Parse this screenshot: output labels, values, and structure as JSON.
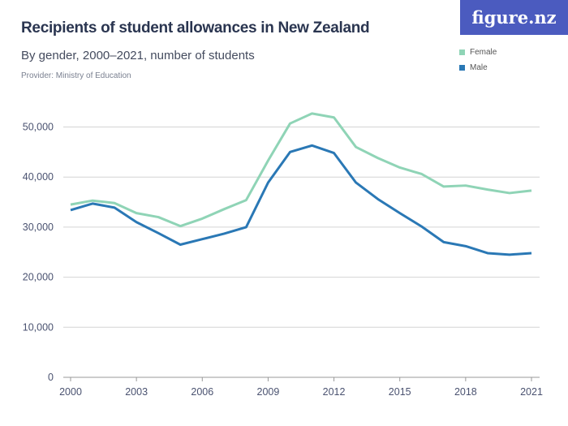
{
  "logo": "figure.nz",
  "chart_data": {
    "type": "line",
    "title": "Recipients of student allowances in New Zealand",
    "subtitle": "By gender, 2000–2021, number of students",
    "provider": "Provider: Ministry of Education",
    "x": [
      2000,
      2001,
      2002,
      2003,
      2004,
      2005,
      2006,
      2007,
      2008,
      2009,
      2010,
      2011,
      2012,
      2013,
      2014,
      2015,
      2016,
      2017,
      2018,
      2019,
      2020,
      2021
    ],
    "x_ticks": [
      "2000",
      "2003",
      "2006",
      "2009",
      "2012",
      "2015",
      "2018",
      "2021"
    ],
    "y_ticks": [
      "0",
      "10,000",
      "20,000",
      "30,000",
      "40,000",
      "50,000"
    ],
    "ylim": [
      0,
      50000
    ],
    "grid": true,
    "legend_placement": "top-right",
    "series": [
      {
        "name": "Female",
        "color": "#8fd4b6",
        "values": [
          34500,
          35300,
          34800,
          32800,
          32000,
          30200,
          31700,
          33600,
          35400,
          43300,
          50700,
          52700,
          51900,
          46000,
          43800,
          41900,
          40600,
          38100,
          38300,
          37500,
          36800,
          37300
        ]
      },
      {
        "name": "Male",
        "color": "#2a78b5",
        "values": [
          33400,
          34700,
          33900,
          31000,
          28800,
          26500,
          27600,
          28700,
          30000,
          38900,
          45000,
          46300,
          44800,
          38900,
          35600,
          32800,
          30100,
          27000,
          26200,
          24800,
          24500,
          24800
        ]
      }
    ]
  }
}
